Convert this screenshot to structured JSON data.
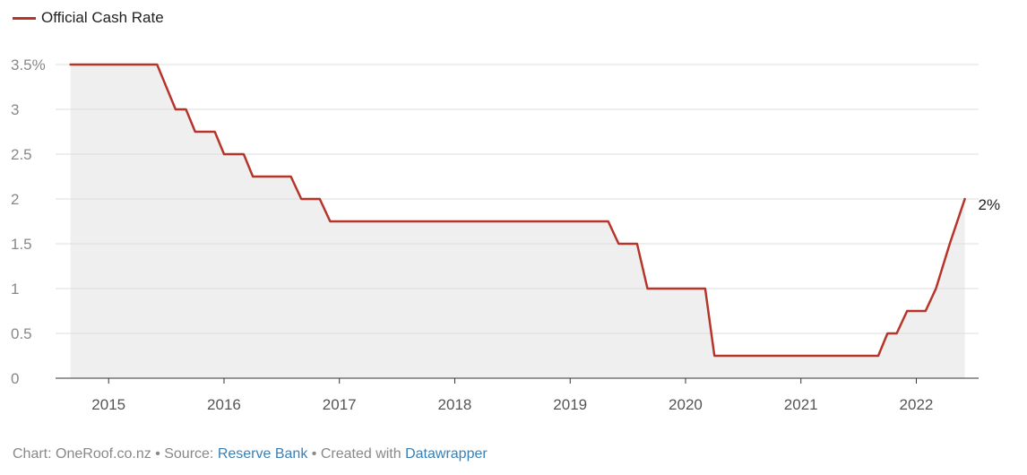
{
  "legend": {
    "label": "Official Cash Rate",
    "color": "#b5352b"
  },
  "end_label": "2%",
  "footer": {
    "prefix": "Chart: OneRoof.co.nz • Source: ",
    "source": "Reserve Bank",
    "middle": " • Created with ",
    "tool": "Datawrapper"
  },
  "chart_data": {
    "type": "line",
    "series": [
      {
        "name": "Official Cash Rate",
        "color": "#b5352b",
        "area_fill": "#efefef",
        "points": [
          [
            2014.67,
            3.5
          ],
          [
            2015.42,
            3.5
          ],
          [
            2015.58,
            3.0
          ],
          [
            2015.67,
            3.0
          ],
          [
            2015.75,
            2.75
          ],
          [
            2015.92,
            2.75
          ],
          [
            2016.0,
            2.5
          ],
          [
            2016.17,
            2.5
          ],
          [
            2016.25,
            2.25
          ],
          [
            2016.58,
            2.25
          ],
          [
            2016.67,
            2.0
          ],
          [
            2016.83,
            2.0
          ],
          [
            2016.92,
            1.75
          ],
          [
            2019.33,
            1.75
          ],
          [
            2019.42,
            1.5
          ],
          [
            2019.58,
            1.5
          ],
          [
            2019.67,
            1.0
          ],
          [
            2020.17,
            1.0
          ],
          [
            2020.25,
            0.25
          ],
          [
            2021.67,
            0.25
          ],
          [
            2021.75,
            0.5
          ],
          [
            2021.83,
            0.5
          ],
          [
            2021.92,
            0.75
          ],
          [
            2022.08,
            0.75
          ],
          [
            2022.17,
            1.0
          ],
          [
            2022.29,
            1.5
          ],
          [
            2022.42,
            2.0
          ]
        ]
      }
    ],
    "x_ticks": [
      2015,
      2016,
      2017,
      2018,
      2019,
      2020,
      2021,
      2022
    ],
    "x_tick_labels": [
      "2015",
      "2016",
      "2017",
      "2018",
      "2019",
      "2020",
      "2021",
      "2022"
    ],
    "y_ticks": [
      0,
      0.5,
      1,
      1.5,
      2,
      2.5,
      3,
      3.5
    ],
    "y_tick_labels": [
      "0",
      "0.5",
      "1",
      "1.5",
      "2",
      "2.5",
      "3",
      "3.5%"
    ],
    "xlim": [
      2014.54,
      2022.54
    ],
    "ylim": [
      0,
      3.5
    ],
    "grid": true,
    "legend_position": "top-left"
  }
}
